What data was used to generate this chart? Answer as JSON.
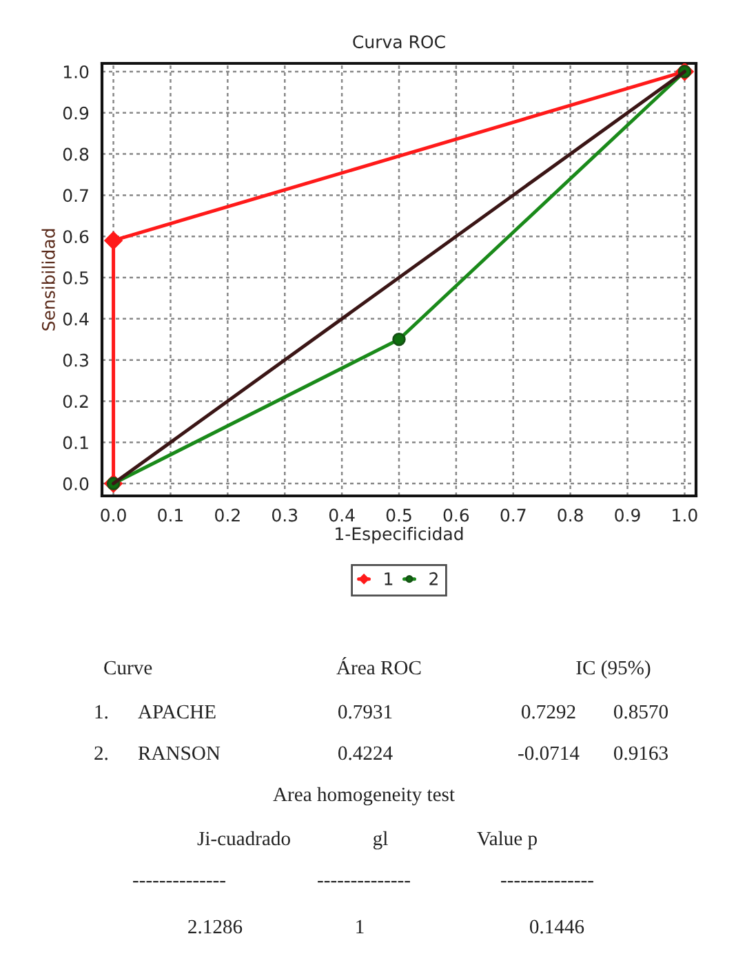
{
  "chart_data": {
    "type": "line",
    "title": "Curva ROC",
    "xlabel": "1-Especificidad",
    "ylabel": "Sensibilidad",
    "xlim": [
      -0.02,
      1.02
    ],
    "ylim": [
      -0.03,
      1.02
    ],
    "xticks": [
      {
        "value": 0,
        "label": "0.0"
      },
      0.1,
      0.2,
      0.3,
      0.4,
      0.5,
      0.6,
      0.7,
      0.8,
      0.9,
      {
        "value": 1,
        "label": "1.0"
      }
    ],
    "yticks": [
      {
        "value": 0,
        "label": "0.0"
      },
      0.1,
      0.2,
      0.3,
      0.4,
      0.5,
      0.6,
      0.7,
      0.8,
      0.9,
      {
        "value": 1,
        "label": "1.0"
      }
    ],
    "grid": true,
    "legend": "bottom",
    "series": [
      {
        "name": "1",
        "color": "#ff1a1a",
        "marker": "diamond",
        "x": [
          0,
          0,
          1
        ],
        "values": [
          0,
          0.59,
          1
        ]
      },
      {
        "name": "2",
        "color": "#1a8a1a",
        "marker": "circle",
        "x": [
          0,
          0.5,
          1
        ],
        "values": [
          0,
          0.35,
          1
        ]
      },
      {
        "color": "#3b1616",
        "marker": "none",
        "x": [
          0,
          1
        ],
        "values": [
          0,
          1
        ]
      }
    ],
    "annotations": [
      "Curve",
      "Área ROC",
      "IC (95%)",
      "1.",
      "APACHE",
      "0.7931",
      "0.7292",
      "0.8570",
      "2.",
      "RANSON",
      "0.4224",
      "-0.0714",
      "0.9163",
      "Area homogeneity test",
      "Ji-cuadrado",
      "gl",
      "Value p",
      "--------------",
      "--------------",
      "--------------",
      "2.1286",
      "1",
      "0.1446"
    ]
  }
}
